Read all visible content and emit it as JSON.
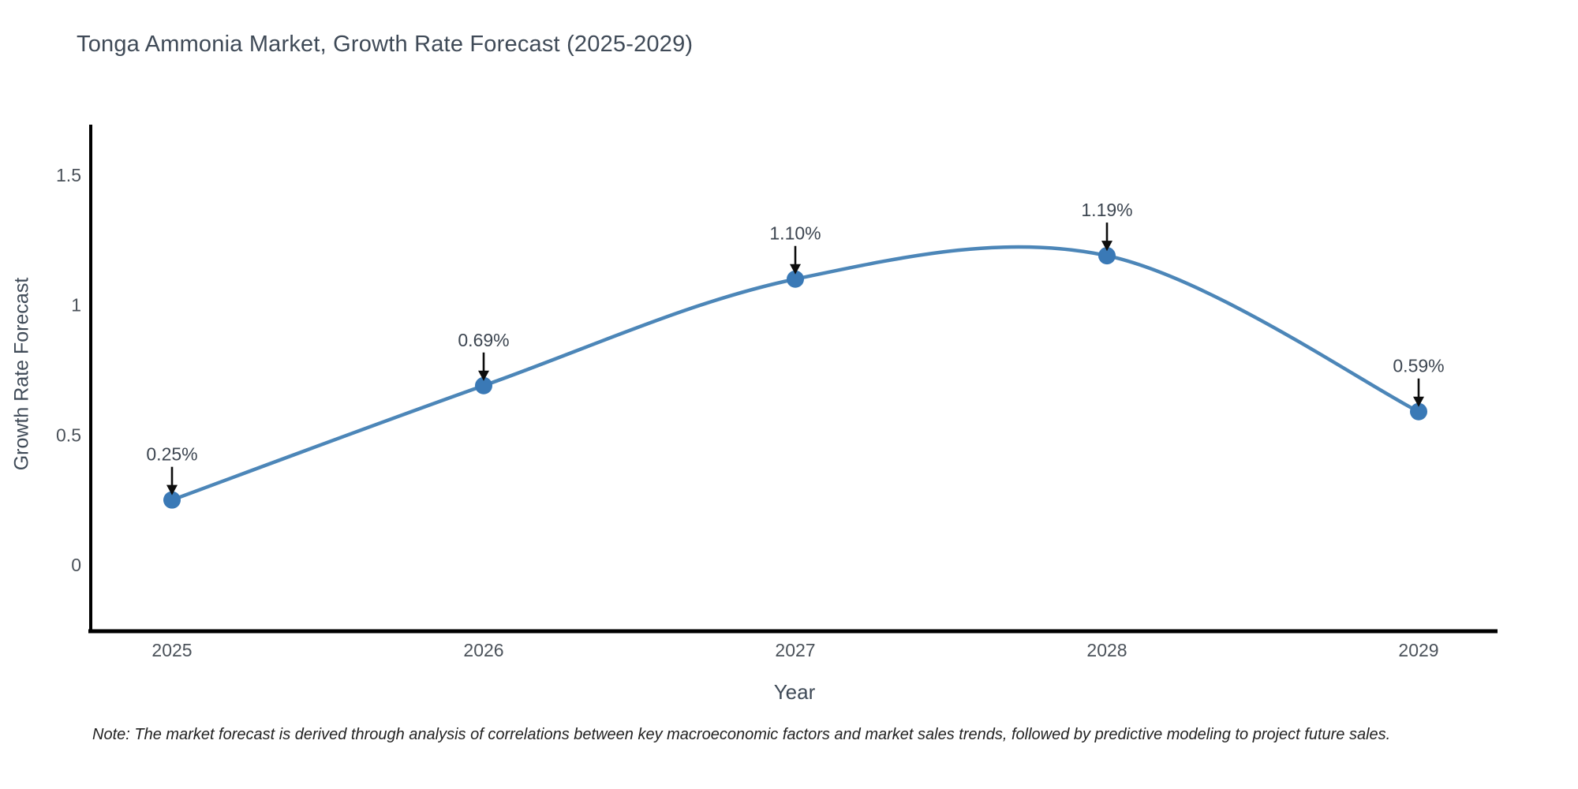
{
  "note": "Note: The market forecast is derived through analysis of correlations between key macroeconomic factors and market sales trends, followed by predictive modeling to project future sales.",
  "chart_data": {
    "type": "line",
    "title": "Tonga Ammonia Market, Growth Rate Forecast (2025-2029)",
    "xlabel": "Year",
    "ylabel": "Growth Rate Forecast",
    "categories": [
      "2025",
      "2026",
      "2027",
      "2028",
      "2029"
    ],
    "values": [
      0.25,
      0.69,
      1.1,
      1.19,
      0.59
    ],
    "point_labels": [
      "0.25%",
      "0.69%",
      "1.10%",
      "1.19%",
      "0.59%"
    ],
    "y_ticks": [
      0,
      0.5,
      1,
      1.5
    ],
    "y_tick_labels": [
      "0",
      "0.5",
      "1",
      "1.5"
    ],
    "ylim": [
      -0.26,
      1.69
    ],
    "line_shape": "spline",
    "grid": false,
    "legend": "none",
    "colors": {
      "line": "#4c86b8",
      "marker": "#3a79b6",
      "axis": "#000000",
      "arrow": "#0d0d0d",
      "title_text": "#3f4a57",
      "label_text": "#3d4651",
      "tick_text": "#4b525a",
      "note_text": "#222222"
    }
  }
}
